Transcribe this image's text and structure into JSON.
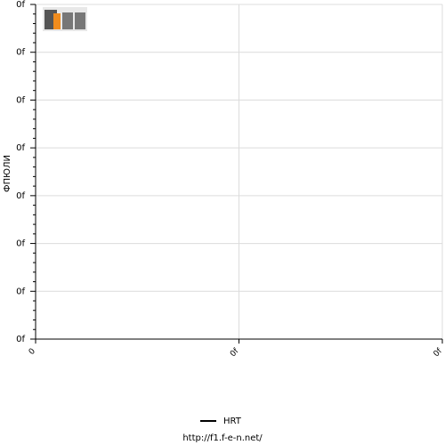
{
  "chart_data": {
    "type": "line",
    "y_label": "ФПЮЛИ",
    "x": [],
    "series": [
      {
        "name": "HRT",
        "color": "#000000",
        "values": []
      }
    ],
    "xlim": [
      0,
      2
    ],
    "xticks": [
      0,
      {
        "value": 1,
        "label": "0f"
      },
      {
        "value": 2,
        "label": "0f"
      }
    ],
    "ylim": [
      0,
      7
    ],
    "yticks": [
      {
        "value": 0,
        "label": "0f"
      },
      {
        "value": 1,
        "label": "0f"
      },
      {
        "value": 2,
        "label": "0f"
      },
      {
        "value": 3,
        "label": "0f"
      },
      {
        "value": 4,
        "label": "0f"
      },
      {
        "value": 5,
        "label": "0f"
      },
      {
        "value": 6,
        "label": "0f"
      },
      {
        "value": 7,
        "label": "0f"
      }
    ],
    "grid": true,
    "legend": "bottom",
    "source": "http://f1.f-e-n.net/"
  }
}
